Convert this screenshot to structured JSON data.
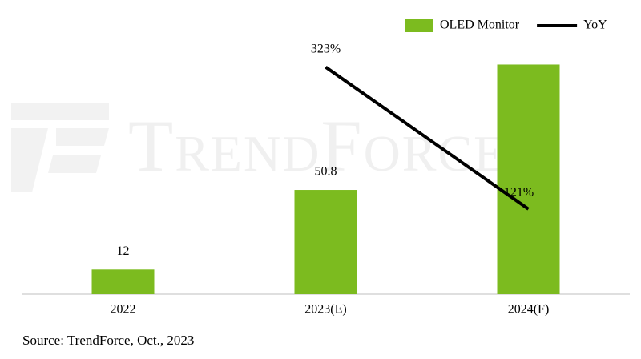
{
  "chart_data": {
    "type": "bar",
    "watermark": "TrendForce",
    "categories": [
      "2022",
      "2023(E)",
      "2024(F)"
    ],
    "series": [
      {
        "name": "OLED Monitor",
        "type": "bar",
        "color": "#7cbb1f",
        "values": [
          12,
          50.8,
          112
        ],
        "value_labels": [
          "12",
          "50.8",
          null
        ]
      },
      {
        "name": "YoY",
        "type": "line",
        "axis": "y2",
        "color": "#000000",
        "values": [
          null,
          323,
          121
        ],
        "value_labels": [
          null,
          "323%",
          "121%"
        ]
      }
    ],
    "ylim": [
      0,
      120
    ],
    "y2lim": [
      0,
      350
    ],
    "legend": "top-right",
    "source": "Source: TrendForce, Oct., 2023"
  }
}
